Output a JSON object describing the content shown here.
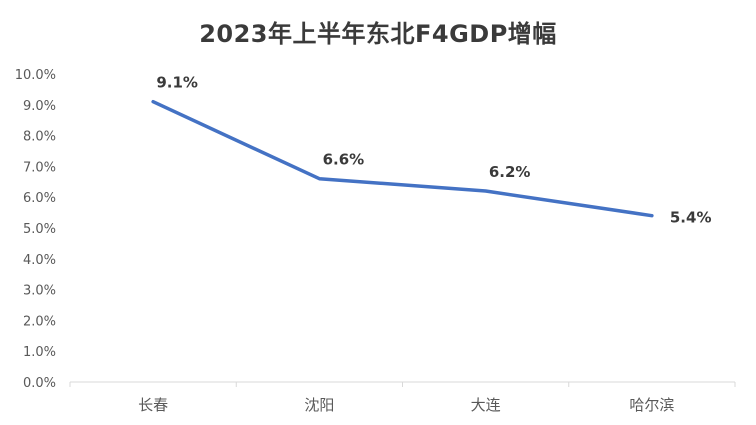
{
  "chart_data": {
    "type": "line",
    "title": "2023年上半年东北F4GDP增幅",
    "xlabel": "",
    "ylabel": "",
    "categories": [
      "长春",
      "沈阳",
      "大连",
      "哈尔滨"
    ],
    "series": [
      {
        "name": "GDP增幅",
        "values": [
          9.1,
          6.6,
          6.2,
          5.4
        ],
        "data_labels": [
          "9.1%",
          "6.6%",
          "6.2%",
          "5.4%"
        ],
        "color": "#4472C4"
      }
    ],
    "ylim": [
      0,
      10
    ],
    "yticks": [
      0,
      1,
      2,
      3,
      4,
      5,
      6,
      7,
      8,
      9,
      10
    ],
    "ytick_labels": [
      "0.0%",
      "1.0%",
      "2.0%",
      "3.0%",
      "4.0%",
      "5.0%",
      "6.0%",
      "7.0%",
      "8.0%",
      "9.0%",
      "10.0%"
    ],
    "grid": false,
    "legend": "none"
  },
  "colors": {
    "line": "#4472C4",
    "axis": "#d9d9d9",
    "text": "#595959",
    "title": "#3a3a3a"
  }
}
